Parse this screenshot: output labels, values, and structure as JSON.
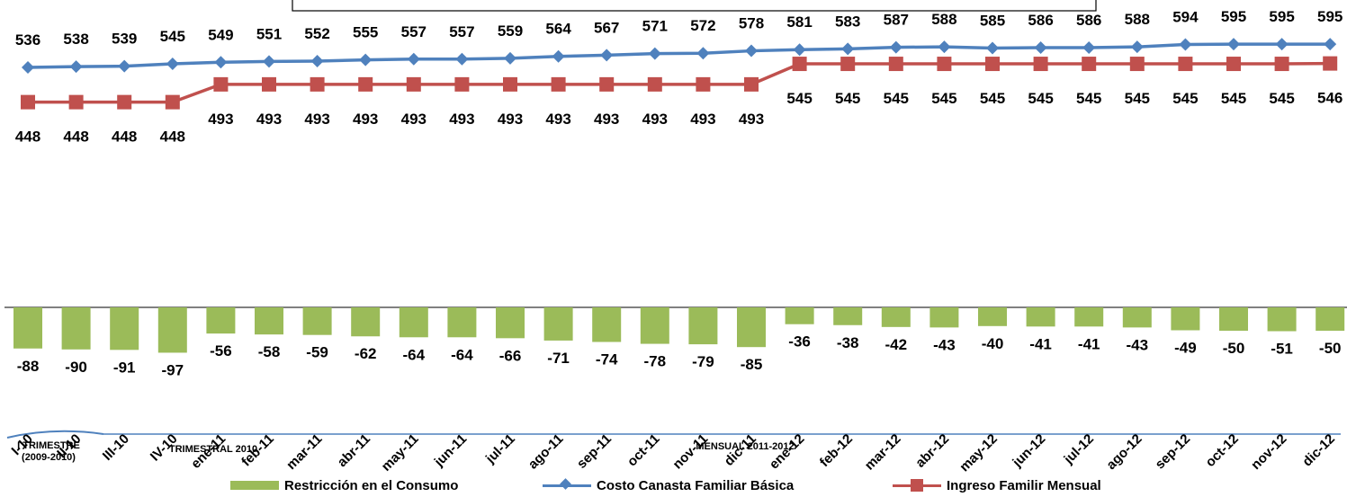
{
  "colors": {
    "restriction": "#9BBB59",
    "costo": "#4F81BD",
    "ingreso": "#C0504D",
    "axis": "#4F81BD"
  },
  "legend": {
    "restriction": "Restricción en el Consumo",
    "costo": "Costo Canasta Familiar Básica",
    "ingreso": "Ingreso Familir Mensual"
  },
  "group_labels": {
    "g1": "I TRIMESTRE (2009-2010)",
    "g2": "TRIMESTRAL 2010",
    "g3": "MENSUAL 2011-2012"
  },
  "chart_data": {
    "type": "bar",
    "categories": [
      "I-10",
      "II-10",
      "III-10",
      "IV-10",
      "ene-11",
      "feb-11",
      "mar-11",
      "abr-11",
      "may-11",
      "jun-11",
      "jul-11",
      "ago-11",
      "sep-11",
      "oct-11",
      "nov-11",
      "dic-11",
      "ene-12",
      "feb-12",
      "mar-12",
      "abr-12",
      "may-12",
      "jun-12",
      "jul-12",
      "ago-12",
      "sep-12",
      "oct-12",
      "nov-12",
      "dic-12"
    ],
    "series": [
      {
        "name": "Restricción en el Consumo",
        "type": "bar",
        "values": [
          -88,
          -90,
          -91,
          -97,
          -56,
          -58,
          -59,
          -62,
          -64,
          -64,
          -66,
          -71,
          -74,
          -78,
          -79,
          -85,
          -36,
          -38,
          -42,
          -43,
          -40,
          -41,
          -41,
          -43,
          -49,
          -50,
          -51,
          -50
        ]
      },
      {
        "name": "Costo Canasta Familiar Básica",
        "type": "line",
        "marker": "diamond",
        "values": [
          536,
          538,
          539,
          545,
          549,
          551,
          552,
          555,
          557,
          557,
          559,
          564,
          567,
          571,
          572,
          578,
          581,
          583,
          587,
          588,
          585,
          586,
          586,
          588,
          594,
          595,
          595,
          595
        ]
      },
      {
        "name": "Ingreso Familir Mensual",
        "type": "line",
        "marker": "square",
        "values": [
          448,
          448,
          448,
          448,
          493,
          493,
          493,
          493,
          493,
          493,
          493,
          493,
          493,
          493,
          493,
          493,
          545,
          545,
          545,
          545,
          545,
          545,
          545,
          545,
          545,
          545,
          545,
          546
        ]
      }
    ],
    "grid": false,
    "legend_position": "bottom"
  }
}
